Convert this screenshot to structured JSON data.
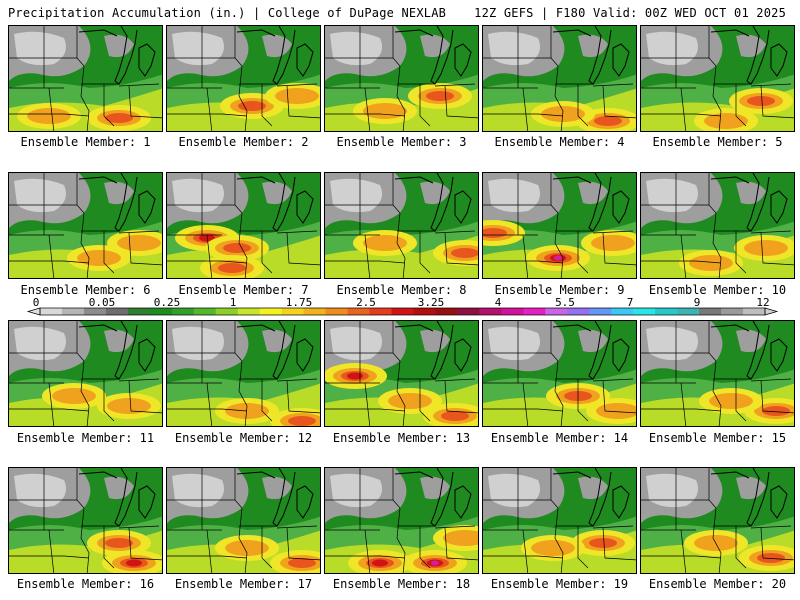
{
  "header": {
    "title_left": "Precipitation Accumulation (in.) | College of DuPage NEXLAB",
    "title_right": "12Z GEFS | F180 Valid: 00Z WED OCT 01 2025"
  },
  "panels": [
    {
      "label": "Ensemble Member: 1"
    },
    {
      "label": "Ensemble Member: 2"
    },
    {
      "label": "Ensemble Member: 3"
    },
    {
      "label": "Ensemble Member: 4"
    },
    {
      "label": "Ensemble Member: 5"
    },
    {
      "label": "Ensemble Member: 6"
    },
    {
      "label": "Ensemble Member: 7"
    },
    {
      "label": "Ensemble Member: 8"
    },
    {
      "label": "Ensemble Member: 9"
    },
    {
      "label": "Ensemble Member: 10"
    },
    {
      "label": "Ensemble Member: 11"
    },
    {
      "label": "Ensemble Member: 12"
    },
    {
      "label": "Ensemble Member: 13"
    },
    {
      "label": "Ensemble Member: 14"
    },
    {
      "label": "Ensemble Member: 15"
    },
    {
      "label": "Ensemble Member: 16"
    },
    {
      "label": "Ensemble Member: 17"
    },
    {
      "label": "Ensemble Member: 18"
    },
    {
      "label": "Ensemble Member: 19"
    },
    {
      "label": "Ensemble Member: 20"
    }
  ],
  "colorbar": {
    "labels": [
      "0",
      "0.05",
      "0.25",
      "1",
      "1.75",
      "2.5",
      "3.25",
      "4",
      "5.5",
      "7",
      "9",
      "12"
    ],
    "colors": [
      "#d9d9d9",
      "#b5b5b5",
      "#8c8c8c",
      "#6e6e6e",
      "#2f7f2f",
      "#1e8c1e",
      "#33a02c",
      "#55b82a",
      "#8ccf2a",
      "#c9e52a",
      "#f2f21e",
      "#f5d21e",
      "#f2b21e",
      "#ee8c1e",
      "#e9641e",
      "#e33c1e",
      "#d21414",
      "#b40f0f",
      "#961010",
      "#8c1040",
      "#b4106e",
      "#d2129a",
      "#e61ec3",
      "#c864e6",
      "#966ef0",
      "#6496f5",
      "#3cc8f5",
      "#28e6e6",
      "#28c8c8",
      "#3cb4b4",
      "#787878",
      "#9a9a9a",
      "#bebebe"
    ]
  },
  "legend_colors": {
    "none": "#f2f2f2",
    "trace_light": "#d0d0d0",
    "trace": "#9e9e9e",
    "light_green": "#4fb046",
    "green": "#1f8a1f",
    "yellow_green": "#b8dc28",
    "yellow": "#f0e628",
    "orange": "#f0a21e",
    "red_orange": "#e8561e",
    "red": "#d01414",
    "magenta": "#d21ea0",
    "purple": "#8a2cc8"
  }
}
